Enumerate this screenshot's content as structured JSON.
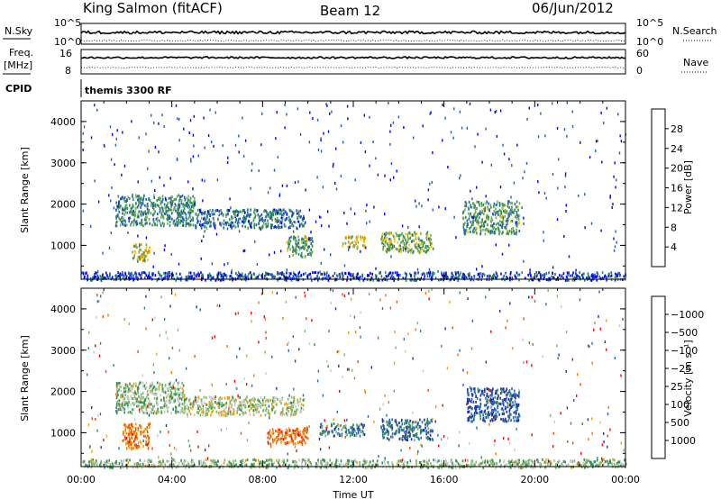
{
  "header": {
    "station": "King Salmon (fitACF)",
    "beam": "Beam 12",
    "date": "06/Jun/2012"
  },
  "strips": {
    "nsky_label": "N.Sky",
    "nsky_ticks": [
      "10^5",
      "10^0"
    ],
    "nsearch_label": "N.Search",
    "nsearch_ticks": [
      "10^5",
      "10^0"
    ],
    "freq_label_1": "Freq.",
    "freq_label_2": "[MHz]",
    "freq_ticks": [
      "16",
      "8"
    ],
    "nave_label": "Nave",
    "nave_ticks": [
      "60",
      "0"
    ],
    "cpid_label": "CPID",
    "cpid_text": "themis 3300 RF"
  },
  "colors": {
    "power": [
      "#0000ff",
      "#1f5fb0",
      "#2f8f4f",
      "#78a75a",
      "#f2c200",
      "#f08a00",
      "#ee5a00",
      "#ff0000"
    ],
    "velocity": [
      "#1e2fa8",
      "#2767b8",
      "#2e8f57",
      "#7ab760",
      "#c8c8c8",
      "#f0a000",
      "#ee7a00",
      "#f04a00",
      "#ff0000"
    ]
  },
  "chart_data": [
    {
      "type": "heatmap",
      "ylabel": "Slant Range [km]",
      "xlabel": "",
      "x_ticks": [
        "00:00",
        "04:00",
        "08:00",
        "12:00",
        "16:00",
        "20:00",
        "00:00"
      ],
      "xlim_hours": [
        0,
        24
      ],
      "ylim": [
        180,
        4500
      ],
      "y_ticks": [
        1000,
        2000,
        3000,
        4000
      ],
      "colorbar": {
        "label": "Power [dB]",
        "ticks": [
          "4",
          "8",
          "12",
          "16",
          "20",
          "24",
          "28"
        ],
        "range": [
          0,
          30
        ]
      },
      "echo_regions": [
        {
          "x": [
            1.5,
            5.0
          ],
          "y": [
            1500,
            2250
          ],
          "level": 0.3
        },
        {
          "x": [
            5.0,
            9.8
          ],
          "y": [
            1450,
            1900
          ],
          "level": 0.25
        },
        {
          "x": [
            9.0,
            10.2
          ],
          "y": [
            750,
            1250
          ],
          "level": 0.35
        },
        {
          "x": [
            11.5,
            12.5
          ],
          "y": [
            950,
            1250
          ],
          "level": 0.55
        },
        {
          "x": [
            13.2,
            15.5
          ],
          "y": [
            850,
            1350
          ],
          "level": 0.4
        },
        {
          "x": [
            2.2,
            3.0
          ],
          "y": [
            650,
            1050
          ],
          "level": 0.5
        },
        {
          "x": [
            16.8,
            19.3
          ],
          "y": [
            1300,
            2100
          ],
          "level": 0.35
        },
        {
          "x": [
            0.0,
            24.0
          ],
          "y": [
            180,
            380
          ],
          "level": 0.15
        }
      ]
    },
    {
      "type": "heatmap",
      "ylabel": "Slant Range [km]",
      "xlabel": "Time UT",
      "x_ticks": [
        "00:00",
        "04:00",
        "08:00",
        "12:00",
        "16:00",
        "20:00",
        "00:00"
      ],
      "xlim_hours": [
        0,
        24
      ],
      "ylim": [
        180,
        4500
      ],
      "y_ticks": [
        1000,
        2000,
        3000,
        4000
      ],
      "colorbar": {
        "label": "Velocity [m s⁻¹]",
        "ticks": [
          "1000",
          "500",
          "100",
          "25",
          "−25",
          "−100",
          "−500",
          "−1000"
        ],
        "range": [
          -1000,
          1000
        ]
      },
      "echo_regions": [
        {
          "x": [
            1.5,
            4.5
          ],
          "y": [
            1500,
            2250
          ],
          "level": 0.4
        },
        {
          "x": [
            4.5,
            9.8
          ],
          "y": [
            1450,
            1900
          ],
          "level": 0.45
        },
        {
          "x": [
            1.8,
            3.0
          ],
          "y": [
            650,
            1250
          ],
          "level": 0.75
        },
        {
          "x": [
            8.2,
            10.0
          ],
          "y": [
            750,
            1150
          ],
          "level": 0.78
        },
        {
          "x": [
            10.5,
            12.5
          ],
          "y": [
            950,
            1250
          ],
          "level": 0.25
        },
        {
          "x": [
            13.2,
            15.5
          ],
          "y": [
            850,
            1350
          ],
          "level": 0.2
        },
        {
          "x": [
            17.0,
            19.3
          ],
          "y": [
            1300,
            2100
          ],
          "level": 0.1
        },
        {
          "x": [
            0.0,
            24.0
          ],
          "y": [
            180,
            380
          ],
          "level": 0.4
        }
      ]
    }
  ]
}
